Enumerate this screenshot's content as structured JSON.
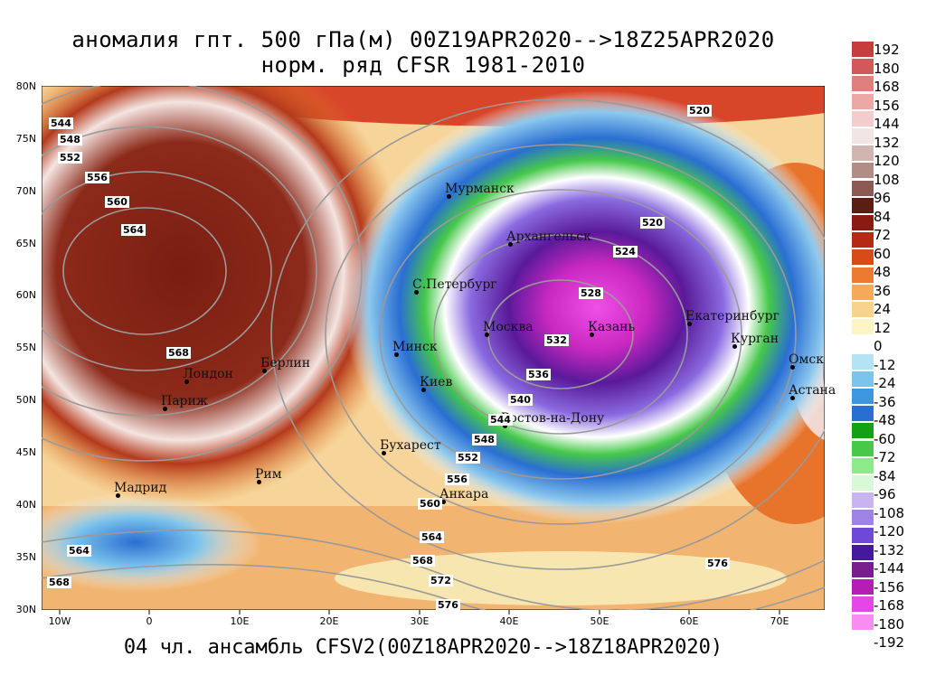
{
  "title": {
    "line1": "аномалия гпт. 500 гПа(м) 00Z19APR2020-->18Z25APR2020",
    "line2": "норм. ряд CFSR 1981-2010"
  },
  "footer": "04 чл. ансамбль CFSV2(00Z18APR2020-->18Z18APR2020)",
  "axes": {
    "lat_labels": [
      "80N",
      "75N",
      "70N",
      "65N",
      "60N",
      "55N",
      "50N",
      "45N",
      "40N",
      "35N",
      "30N"
    ],
    "lon_labels": [
      "10W",
      "0",
      "10E",
      "20E",
      "30E",
      "40E",
      "50E",
      "60E",
      "70E"
    ]
  },
  "cities": [
    {
      "name": "Мурманск"
    },
    {
      "name": "Архангельск"
    },
    {
      "name": "С.Петербург"
    },
    {
      "name": "Москва"
    },
    {
      "name": "Казань"
    },
    {
      "name": "Екатеринбург"
    },
    {
      "name": "Курган"
    },
    {
      "name": "Омск"
    },
    {
      "name": "Астана"
    },
    {
      "name": "Минск"
    },
    {
      "name": "Киев"
    },
    {
      "name": "Ростов-на-Дону"
    },
    {
      "name": "Бухарест"
    },
    {
      "name": "Анкара"
    },
    {
      "name": "Берлин"
    },
    {
      "name": "Лондон"
    },
    {
      "name": "Париж"
    },
    {
      "name": "Рим"
    },
    {
      "name": "Мадрид"
    }
  ],
  "contour_labels": [
    "544",
    "548",
    "552",
    "556",
    "560",
    "564",
    "568",
    "520",
    "520",
    "524",
    "528",
    "532",
    "536",
    "540",
    "544",
    "548",
    "552",
    "556",
    "560",
    "564",
    "568",
    "572",
    "576",
    "576",
    "564",
    "568"
  ],
  "colorbar": {
    "labels": [
      "192",
      "180",
      "168",
      "156",
      "144",
      "132",
      "120",
      "108",
      "96",
      "84",
      "72",
      "60",
      "48",
      "36",
      "24",
      "12",
      "0",
      "-12",
      "-24",
      "-36",
      "-48",
      "-60",
      "-72",
      "-84",
      "-96",
      "-108",
      "-120",
      "-132",
      "-144",
      "-156",
      "-168",
      "-180",
      "-192"
    ],
    "colors": [
      "#c83c3c",
      "#d2585a",
      "#e0807e",
      "#eca8a4",
      "#f4cccc",
      "#f2e6e4",
      "#d2b4b0",
      "#b48c86",
      "#8c5a52",
      "#5a1e14",
      "#8c1a10",
      "#b42a14",
      "#d84a18",
      "#ec7a30",
      "#f4aa5a",
      "#f8d28e",
      "#fdf6c4",
      "#ffffff",
      "#b4e4f4",
      "#7cc4ec",
      "#3c96e0",
      "#2a6ed2",
      "#14a014",
      "#46c84a",
      "#8cea8c",
      "#d8f8d8",
      "#c8b4f0",
      "#9e82e6",
      "#7048d8",
      "#46189e",
      "#781e8c",
      "#b41eb4",
      "#e646e6",
      "#f88cf0"
    ]
  }
}
